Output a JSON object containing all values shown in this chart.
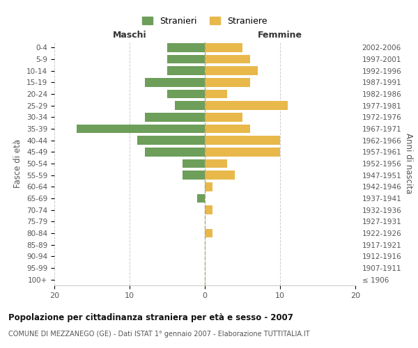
{
  "age_groups": [
    "100+",
    "95-99",
    "90-94",
    "85-89",
    "80-84",
    "75-79",
    "70-74",
    "65-69",
    "60-64",
    "55-59",
    "50-54",
    "45-49",
    "40-44",
    "35-39",
    "30-34",
    "25-29",
    "20-24",
    "15-19",
    "10-14",
    "5-9",
    "0-4"
  ],
  "birth_years": [
    "≤ 1906",
    "1907-1911",
    "1912-1916",
    "1917-1921",
    "1922-1926",
    "1927-1931",
    "1932-1936",
    "1937-1941",
    "1942-1946",
    "1947-1951",
    "1952-1956",
    "1957-1961",
    "1962-1966",
    "1967-1971",
    "1972-1976",
    "1977-1981",
    "1982-1986",
    "1987-1991",
    "1992-1996",
    "1997-2001",
    "2002-2006"
  ],
  "maschi": [
    0,
    0,
    0,
    0,
    0,
    0,
    0,
    1,
    0,
    3,
    3,
    8,
    9,
    17,
    8,
    4,
    5,
    8,
    5,
    5,
    5
  ],
  "femmine": [
    0,
    0,
    0,
    0,
    1,
    0,
    1,
    0,
    1,
    4,
    3,
    10,
    10,
    6,
    5,
    11,
    3,
    6,
    7,
    6,
    5
  ],
  "maschi_color": "#6d9e5a",
  "femmine_color": "#e8b84b",
  "background_color": "#ffffff",
  "grid_color": "#cccccc",
  "title": "Popolazione per cittadinanza straniera per età e sesso - 2007",
  "subtitle": "COMUNE DI MEZZANEGO (GE) - Dati ISTAT 1° gennaio 2007 - Elaborazione TUTTITALIA.IT",
  "xlabel_left": "Maschi",
  "xlabel_right": "Femmine",
  "ylabel": "Fasce di età",
  "ylabel_right": "Anni di nascita",
  "legend_stranieri": "Stranieri",
  "legend_straniere": "Straniere",
  "xlim": 20
}
